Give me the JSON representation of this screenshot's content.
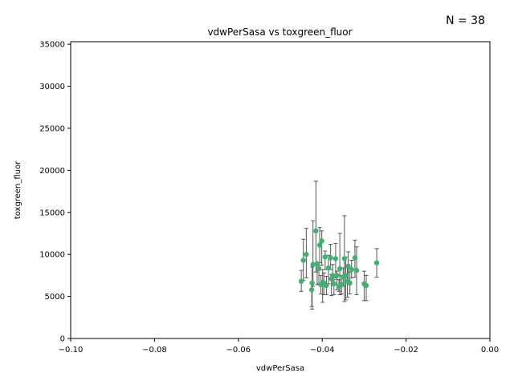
{
  "chart_data": {
    "type": "scatter",
    "title": "vdwPerSasa vs toxgreen_fluor",
    "xlabel": "vdwPerSasa",
    "ylabel": "toxgreen_fluor",
    "annotation": "N = 38",
    "xlim": [
      -0.1,
      0.0
    ],
    "ylim": [
      0,
      35300
    ],
    "xticks": [
      -0.1,
      -0.08,
      -0.06,
      -0.04,
      -0.02,
      0.0
    ],
    "xtick_labels": [
      "−0.10",
      "−0.08",
      "−0.06",
      "−0.04",
      "−0.02",
      "0.00"
    ],
    "yticks": [
      0,
      5000,
      10000,
      15000,
      20000,
      25000,
      30000,
      35000
    ],
    "ytick_labels": [
      "0",
      "5000",
      "10000",
      "15000",
      "20000",
      "25000",
      "30000",
      "35000"
    ],
    "grid": false,
    "marker_color": "#3cb371",
    "errorbar_color": "#555555",
    "points": [
      {
        "x": -0.045,
        "y": 6800,
        "yerr_low": 5600,
        "yerr_high": 8100
      },
      {
        "x": -0.0445,
        "y": 9300,
        "yerr_low": 6900,
        "yerr_high": 11800
      },
      {
        "x": -0.0438,
        "y": 10000,
        "yerr_low": 7200,
        "yerr_high": 13100
      },
      {
        "x": -0.0425,
        "y": 5800,
        "yerr_low": 3800,
        "yerr_high": 6600
      },
      {
        "x": -0.0424,
        "y": 6600,
        "yerr_low": 3500,
        "yerr_high": 8500
      },
      {
        "x": -0.0422,
        "y": 8800,
        "yerr_low": 6200,
        "yerr_high": 14000
      },
      {
        "x": -0.0415,
        "y": 12800,
        "yerr_low": 7900,
        "yerr_high": 18700
      },
      {
        "x": -0.0412,
        "y": 8900,
        "yerr_low": 6400,
        "yerr_high": 9000
      },
      {
        "x": -0.0408,
        "y": 8300,
        "yerr_low": 6500,
        "yerr_high": 8700
      },
      {
        "x": -0.0406,
        "y": 11100,
        "yerr_low": 9000,
        "yerr_high": 13200
      },
      {
        "x": -0.0403,
        "y": 6400,
        "yerr_low": 5300,
        "yerr_high": 7500
      },
      {
        "x": -0.0401,
        "y": 11600,
        "yerr_low": 8700,
        "yerr_high": 12800
      },
      {
        "x": -0.0399,
        "y": 6700,
        "yerr_low": 4300,
        "yerr_high": 8200
      },
      {
        "x": -0.0396,
        "y": 6600,
        "yerr_low": 5200,
        "yerr_high": 7800
      },
      {
        "x": -0.0393,
        "y": 9700,
        "yerr_low": 8200,
        "yerr_high": 10400
      },
      {
        "x": -0.039,
        "y": 6300,
        "yerr_low": 5200,
        "yerr_high": 7400
      },
      {
        "x": -0.0385,
        "y": 8400,
        "yerr_low": 6500,
        "yerr_high": 9900
      },
      {
        "x": -0.038,
        "y": 9600,
        "yerr_low": 8200,
        "yerr_high": 11200
      },
      {
        "x": -0.0378,
        "y": 7100,
        "yerr_low": 5100,
        "yerr_high": 7600
      },
      {
        "x": -0.0375,
        "y": 7500,
        "yerr_low": 6300,
        "yerr_high": 8800
      },
      {
        "x": -0.0372,
        "y": 6500,
        "yerr_low": 5200,
        "yerr_high": 7000
      },
      {
        "x": -0.0368,
        "y": 9500,
        "yerr_low": 7200,
        "yerr_high": 11300
      },
      {
        "x": -0.0365,
        "y": 7500,
        "yerr_low": 5800,
        "yerr_high": 8000
      },
      {
        "x": -0.036,
        "y": 6200,
        "yerr_low": 5600,
        "yerr_high": 7000
      },
      {
        "x": -0.0358,
        "y": 8300,
        "yerr_low": 5200,
        "yerr_high": 12500
      },
      {
        "x": -0.0354,
        "y": 6400,
        "yerr_low": 5300,
        "yerr_high": 7500
      },
      {
        "x": -0.035,
        "y": 7300,
        "yerr_low": 6200,
        "yerr_high": 8400
      },
      {
        "x": -0.0347,
        "y": 9500,
        "yerr_low": 4400,
        "yerr_high": 14600
      },
      {
        "x": -0.0344,
        "y": 7500,
        "yerr_low": 4600,
        "yerr_high": 9700
      },
      {
        "x": -0.034,
        "y": 6800,
        "yerr_low": 4900,
        "yerr_high": 8700
      },
      {
        "x": -0.0338,
        "y": 8600,
        "yerr_low": 6600,
        "yerr_high": 10300
      },
      {
        "x": -0.0334,
        "y": 6600,
        "yerr_low": 5300,
        "yerr_high": 7900
      },
      {
        "x": -0.033,
        "y": 8200,
        "yerr_low": 7200,
        "yerr_high": 9300
      },
      {
        "x": -0.0322,
        "y": 9600,
        "yerr_low": 7300,
        "yerr_high": 11700
      },
      {
        "x": -0.0318,
        "y": 8100,
        "yerr_low": 5200,
        "yerr_high": 10900
      },
      {
        "x": -0.03,
        "y": 6500,
        "yerr_low": 4500,
        "yerr_high": 8000
      },
      {
        "x": -0.0295,
        "y": 6300,
        "yerr_low": 4500,
        "yerr_high": 7500
      },
      {
        "x": -0.027,
        "y": 9000,
        "yerr_low": 7300,
        "yerr_high": 10700
      }
    ]
  }
}
